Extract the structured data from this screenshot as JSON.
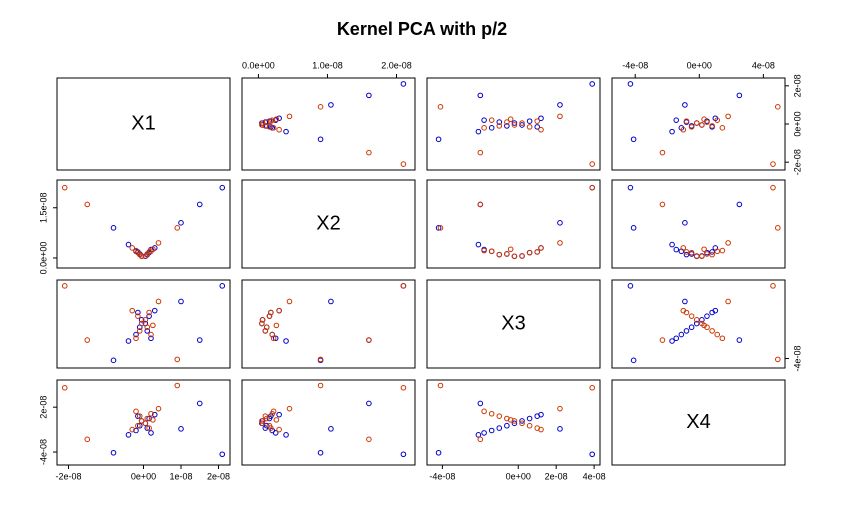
{
  "chart_data": {
    "type": "pairs",
    "title": "Kernel PCA with p/2",
    "variables": [
      {
        "name": "X1",
        "lim": [
          -2.2e-08,
          2.2e-08
        ],
        "xticks": [
          {
            "value": -2e-08,
            "label": "-2e-08"
          },
          {
            "value": 0,
            "label": "0e+00"
          },
          {
            "value": 1e-08,
            "label": "1e-08"
          },
          {
            "value": 2e-08,
            "label": "2e-08"
          }
        ],
        "yticks": [
          {
            "value": 2e-08,
            "label": "2e-08"
          },
          {
            "value": 0,
            "label": "0e+00"
          },
          {
            "value": -2e-08,
            "label": "-2e-08"
          }
        ]
      },
      {
        "name": "X2",
        "lim": [
          -1.8e-09,
          2.21e-08
        ],
        "xticks": [
          {
            "value": 0,
            "label": "0.0e+00"
          },
          {
            "value": 1e-08,
            "label": "1.0e-08"
          },
          {
            "value": 2e-08,
            "label": "2.0e-08"
          }
        ],
        "yticks": [
          {
            "value": 0,
            "label": "0.0e+00"
          },
          {
            "value": 1.5e-08,
            "label": "1.5e-08"
          }
        ]
      },
      {
        "name": "X3",
        "lim": [
          -4.6e-08,
          4.1e-08
        ],
        "xticks": [
          {
            "value": -4e-08,
            "label": "-4e-08"
          },
          {
            "value": 0,
            "label": "0e+00"
          },
          {
            "value": 2e-08,
            "label": "2e-08"
          },
          {
            "value": 4e-08,
            "label": "4e-08"
          }
        ],
        "yticks": [
          {
            "value": -4e-08,
            "label": "-4e-08"
          }
        ]
      },
      {
        "name": "X4",
        "lim": [
          -5.2e-08,
          5.1e-08
        ],
        "xticks": [
          {
            "value": -4e-08,
            "label": "-4e-08"
          },
          {
            "value": 0,
            "label": "0e+00"
          },
          {
            "value": 4e-08,
            "label": "4e-08"
          }
        ],
        "yticks": [
          {
            "value": 2e-08,
            "label": "2e-08"
          },
          {
            "value": -4e-08,
            "label": "-4e-08"
          }
        ]
      }
    ],
    "series": [
      {
        "color": "#0000cd",
        "values": [
          [
            2.1e-08,
            2.1e-08,
            3.9e-08,
            -4.3e-08
          ],
          [
            1.5e-08,
            1.6e-08,
            -2e-08,
            2.5e-08
          ],
          [
            -8e-09,
            9e-09,
            -4.2e-08,
            -4.1e-08
          ],
          [
            -4e-09,
            4e-09,
            -2.1e-08,
            -1.7e-08
          ],
          [
            2e-09,
            2.5e-09,
            -1.8e-08,
            -1.44e-08
          ],
          [
            -2e-09,
            2e-09,
            -1.4e-08,
            -1.12e-08
          ],
          [
            1e-09,
            1e-09,
            -1e-08,
            -8e-09
          ],
          [
            -1e-09,
            1.2e-09,
            -6e-09,
            -4.8e-09
          ],
          [
            5e-10,
            5e-10,
            -2e-09,
            -1.6e-09
          ],
          [
            -5e-10,
            6e-10,
            2e-09,
            1.6e-09
          ],
          [
            1.5e-09,
            1.6e-09,
            6e-09,
            4.8e-09
          ],
          [
            -1.5e-09,
            1.8e-09,
            1e-08,
            8e-09
          ],
          [
            3e-09,
            3e-09,
            1.2e-08,
            1e-08
          ],
          [
            1e-08,
            1.05e-08,
            2.2e-08,
            -9e-09
          ]
        ]
      },
      {
        "color": "#cd3700",
        "values": [
          [
            -2.1e-08,
            2.1e-08,
            3.9e-08,
            4.6e-08
          ],
          [
            -1.5e-08,
            1.6e-08,
            -2e-08,
            -2.3e-08
          ],
          [
            9e-09,
            9e-09,
            -4.1e-08,
            4.9e-08
          ],
          [
            4e-09,
            4.5e-09,
            2.2e-08,
            1.8e-08
          ],
          [
            -2e-09,
            2.2e-09,
            -1.8e-08,
            1.44e-08
          ],
          [
            2e-09,
            2e-09,
            -1.4e-08,
            1.12e-08
          ],
          [
            -1e-09,
            1e-09,
            -1e-08,
            8e-09
          ],
          [
            1e-09,
            1.2e-09,
            -6e-09,
            4.8e-09
          ],
          [
            -5e-10,
            5e-10,
            -2e-09,
            1.6e-09
          ],
          [
            5e-10,
            6e-10,
            2e-09,
            -1.6e-09
          ],
          [
            -1.5e-09,
            1.6e-09,
            6e-09,
            -4.8e-09
          ],
          [
            1.5e-09,
            1.8e-09,
            1e-08,
            -8e-09
          ],
          [
            -3e-09,
            3e-09,
            1.2e-08,
            -1e-08
          ],
          [
            2.5e-09,
            2.6e-09,
            -4e-09,
            3e-09
          ]
        ]
      }
    ]
  }
}
